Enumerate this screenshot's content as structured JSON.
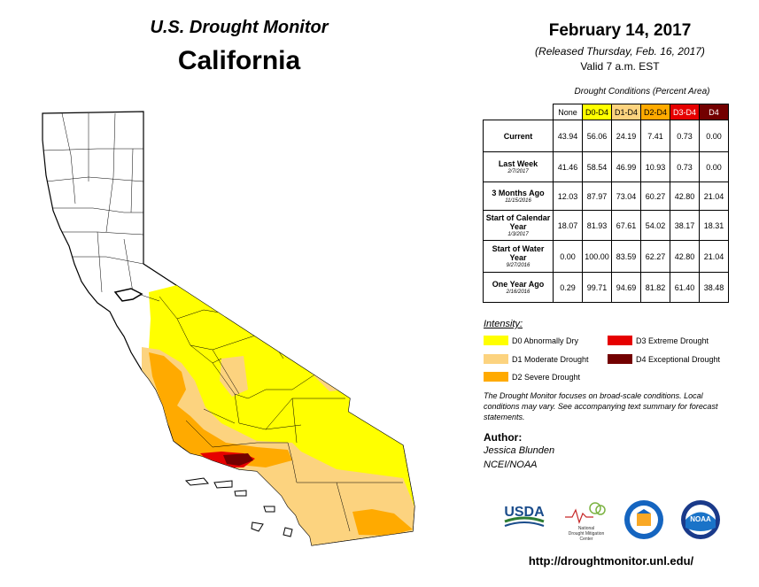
{
  "header": {
    "title": "U.S. Drought Monitor",
    "state": "California"
  },
  "date_block": {
    "date": "February 14, 2017",
    "released": "(Released Thursday, Feb. 16, 2017)",
    "valid": "Valid 7 a.m. EST"
  },
  "table": {
    "caption": "Drought Conditions (Percent Area)",
    "headers": [
      "None",
      "D0-D4",
      "D1-D4",
      "D2-D4",
      "D3-D4",
      "D4"
    ],
    "header_colors": [
      "#ffffff",
      "#ffff00",
      "#fcd37f",
      "#ffaa00",
      "#e60000",
      "#730000"
    ],
    "rows": [
      {
        "label": "Current",
        "sub": "",
        "values": [
          "43.94",
          "56.06",
          "24.19",
          "7.41",
          "0.73",
          "0.00"
        ]
      },
      {
        "label": "Last Week",
        "sub": "2/7/2017",
        "values": [
          "41.46",
          "58.54",
          "46.99",
          "10.93",
          "0.73",
          "0.00"
        ]
      },
      {
        "label": "3 Months Ago",
        "sub": "11/15/2016",
        "values": [
          "12.03",
          "87.97",
          "73.04",
          "60.27",
          "42.80",
          "21.04"
        ]
      },
      {
        "label": "Start of Calendar Year",
        "sub": "1/3/2017",
        "values": [
          "18.07",
          "81.93",
          "67.61",
          "54.02",
          "38.17",
          "18.31"
        ]
      },
      {
        "label": "Start of Water Year",
        "sub": "9/27/2016",
        "values": [
          "0.00",
          "100.00",
          "83.59",
          "62.27",
          "42.80",
          "21.04"
        ]
      },
      {
        "label": "One Year Ago",
        "sub": "2/16/2016",
        "values": [
          "0.29",
          "99.71",
          "94.69",
          "81.82",
          "61.40",
          "38.48"
        ]
      }
    ]
  },
  "legend": {
    "title": "Intensity:",
    "items": [
      {
        "label": "D0 Abnormally Dry",
        "color": "#ffff00"
      },
      {
        "label": "D1 Moderate Drought",
        "color": "#fcd37f"
      },
      {
        "label": "D2 Severe Drought",
        "color": "#ffaa00"
      },
      {
        "label": "D3 Extreme Drought",
        "color": "#e60000"
      },
      {
        "label": "D4 Exceptional Drought",
        "color": "#730000"
      }
    ]
  },
  "note": "The Drought Monitor focuses on broad-scale conditions. Local conditions may vary. See accompanying text summary for forecast statements.",
  "author": {
    "heading": "Author:",
    "name": "Jessica Blunden",
    "org": "NCEI/NOAA"
  },
  "logos": {
    "usda": "USDA",
    "ndmc": "National Drought Mitigation Center",
    "noaa": "NOAA"
  },
  "url": "http://droughtmonitor.unl.edu/"
}
